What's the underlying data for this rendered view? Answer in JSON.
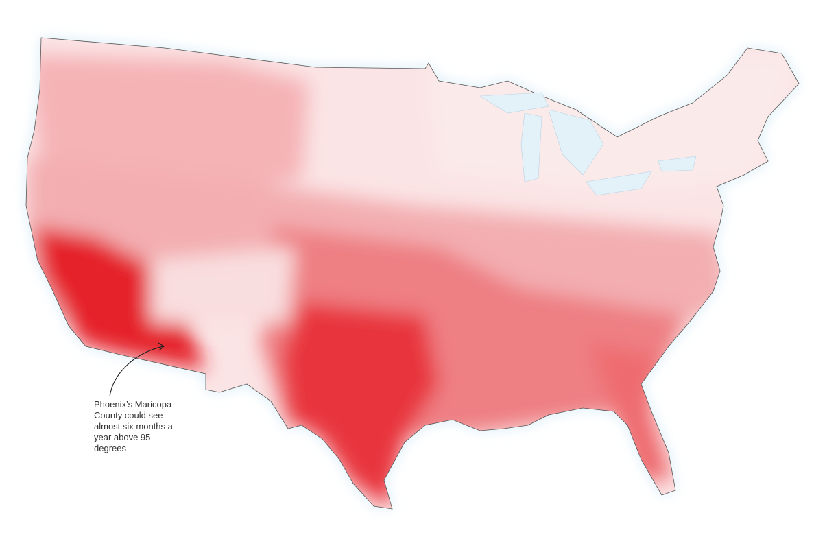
{
  "annotation": {
    "lines": [
      "Phoenix’s Maricopa",
      "County could see",
      "almost six months a",
      "year above 95",
      "degrees"
    ]
  }
}
